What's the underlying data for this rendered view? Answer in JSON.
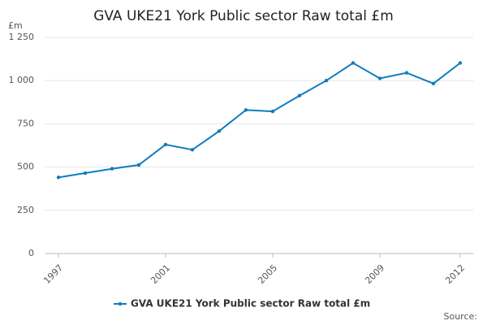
{
  "chart_data": {
    "type": "line",
    "title": "GVA UKE21 York Public sector Raw total £m",
    "y_label": "£m",
    "source": "Source:",
    "x": [
      1997,
      1998,
      1999,
      2000,
      2001,
      2002,
      2003,
      2004,
      2005,
      2006,
      2007,
      2008,
      2009,
      2010,
      2011,
      2012
    ],
    "series": [
      {
        "name": "GVA UKE21 York Public sector Raw total £m",
        "color": "#0f7cbf",
        "values": [
          440,
          465,
          490,
          512,
          630,
          600,
          708,
          830,
          822,
          913,
          1000,
          1102,
          1013,
          1045,
          983,
          1102
        ]
      }
    ],
    "xlim": [
      1996.5,
      2012.5
    ],
    "xticks": [
      1997,
      2001,
      2005,
      2009,
      2012
    ],
    "ylim": [
      0,
      1250
    ],
    "yticks": [
      0,
      250,
      500,
      750,
      {
        "value": 1000,
        "label": "1 000"
      },
      {
        "value": 1250,
        "label": "1 250"
      }
    ],
    "grid": true
  }
}
